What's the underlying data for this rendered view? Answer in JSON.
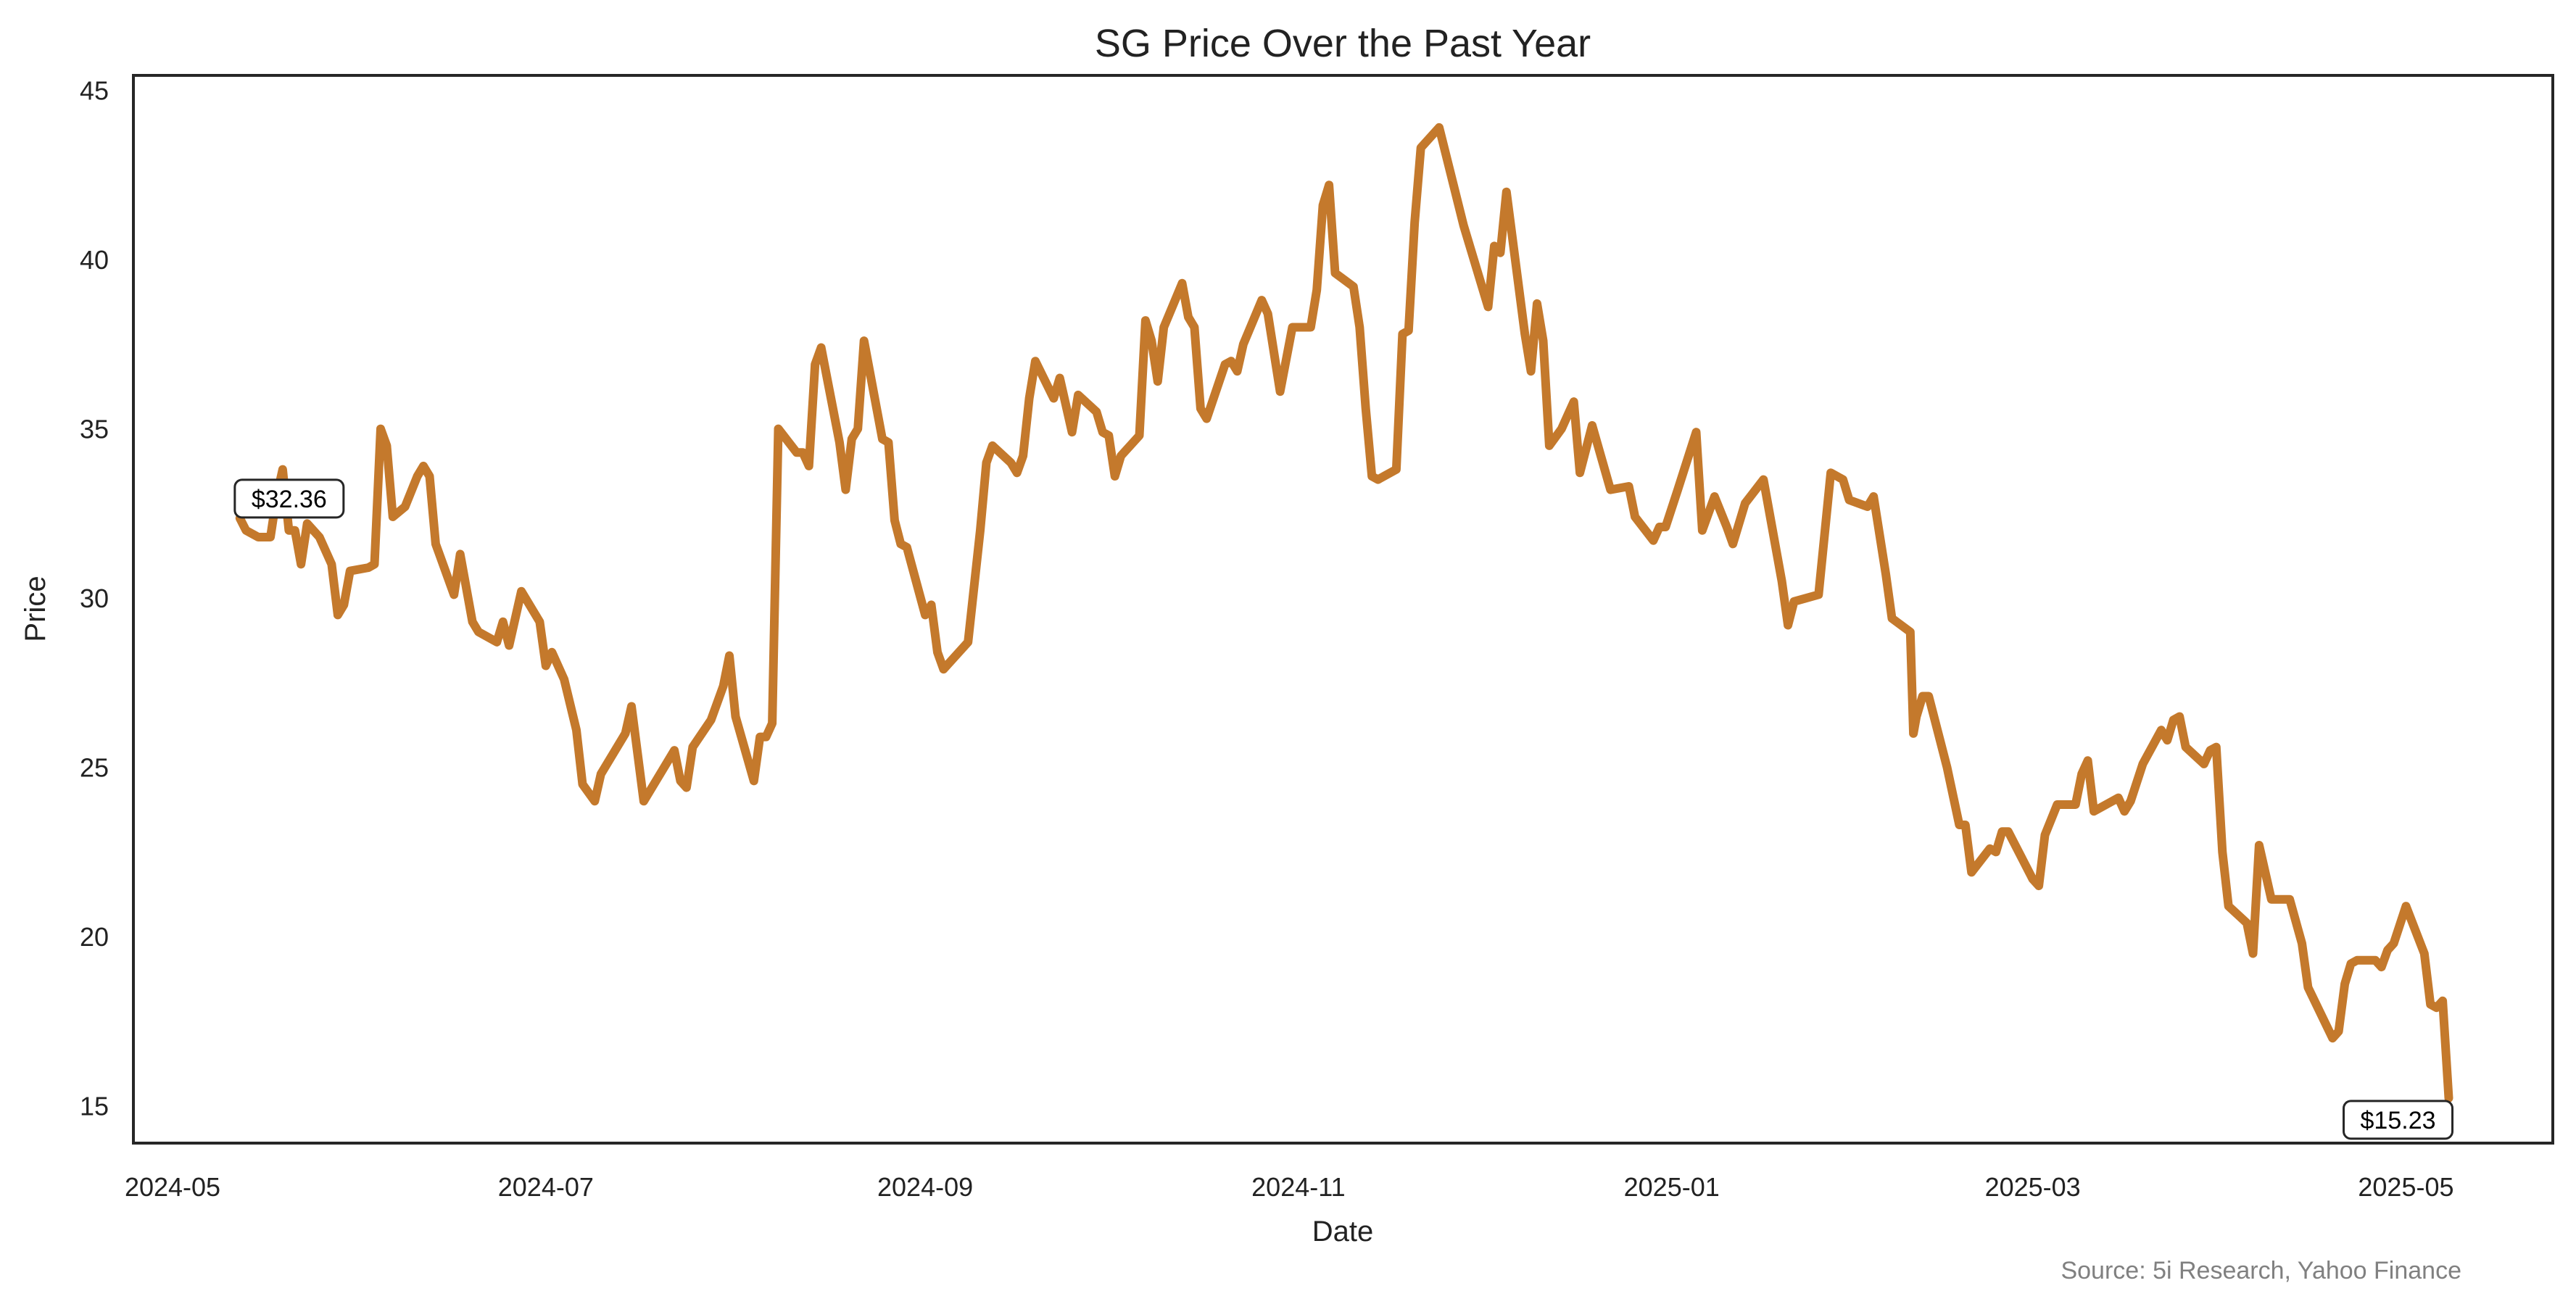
{
  "chart_data": {
    "type": "line",
    "title": "SG Price Over the Past Year",
    "xlabel": "Date",
    "ylabel": "Price",
    "source": "Source: 5i Research, Yahoo Finance",
    "x_unit": "days since 2024-05-01",
    "xlim": [
      -6.4,
      389
    ],
    "ylim": [
      13.9,
      45.44
    ],
    "grid": false,
    "x_ticks": [
      {
        "label": "2024-05",
        "value": 0
      },
      {
        "label": "2024-07",
        "value": 61
      },
      {
        "label": "2024-09",
        "value": 123
      },
      {
        "label": "2024-11",
        "value": 184
      },
      {
        "label": "2025-01",
        "value": 245
      },
      {
        "label": "2025-03",
        "value": 304
      },
      {
        "label": "2025-05",
        "value": 365
      }
    ],
    "y_ticks": [
      15,
      20,
      25,
      30,
      35,
      40,
      45
    ],
    "line_color": "#c4792c",
    "series": [
      {
        "name": "SG",
        "points": [
          [
            11,
            32.36
          ],
          [
            12,
            32.0
          ],
          [
            14,
            31.8
          ],
          [
            16,
            31.8
          ],
          [
            17,
            33.0
          ],
          [
            18,
            33.8
          ],
          [
            19,
            32.0
          ],
          [
            20,
            32.0
          ],
          [
            21,
            31.0
          ],
          [
            22,
            32.2
          ],
          [
            24,
            31.8
          ],
          [
            26,
            31.0
          ],
          [
            27,
            29.5
          ],
          [
            28,
            29.8
          ],
          [
            29,
            30.8
          ],
          [
            32,
            30.9
          ],
          [
            33,
            31.0
          ],
          [
            34,
            35.0
          ],
          [
            35,
            34.5
          ],
          [
            36,
            32.4
          ],
          [
            38,
            32.7
          ],
          [
            40,
            33.6
          ],
          [
            41,
            33.9
          ],
          [
            42,
            33.6
          ],
          [
            43,
            31.6
          ],
          [
            46,
            30.1
          ],
          [
            47,
            31.3
          ],
          [
            49,
            29.3
          ],
          [
            50,
            29.0
          ],
          [
            53,
            28.7
          ],
          [
            54,
            29.3
          ],
          [
            55,
            28.6
          ],
          [
            57,
            30.2
          ],
          [
            60,
            29.3
          ],
          [
            61,
            28.0
          ],
          [
            62,
            28.4
          ],
          [
            64,
            27.6
          ],
          [
            66,
            26.1
          ],
          [
            67,
            24.5
          ],
          [
            69,
            24.0
          ],
          [
            70,
            24.8
          ],
          [
            74,
            26.0
          ],
          [
            75,
            26.8
          ],
          [
            77,
            24.0
          ],
          [
            80,
            24.9
          ],
          [
            82,
            25.5
          ],
          [
            83,
            24.6
          ],
          [
            84,
            24.4
          ],
          [
            85,
            25.6
          ],
          [
            88,
            26.4
          ],
          [
            90,
            27.4
          ],
          [
            91,
            28.3
          ],
          [
            92,
            26.5
          ],
          [
            95,
            24.6
          ],
          [
            96,
            25.9
          ],
          [
            97,
            25.9
          ],
          [
            98,
            26.3
          ],
          [
            99,
            35.0
          ],
          [
            102,
            34.3
          ],
          [
            103,
            34.3
          ],
          [
            104,
            33.9
          ],
          [
            105,
            36.9
          ],
          [
            106,
            37.4
          ],
          [
            109,
            34.6
          ],
          [
            110,
            33.2
          ],
          [
            111,
            34.7
          ],
          [
            112,
            35.0
          ],
          [
            113,
            37.6
          ],
          [
            116,
            34.7
          ],
          [
            117,
            34.6
          ],
          [
            118,
            32.3
          ],
          [
            119,
            31.6
          ],
          [
            120,
            31.5
          ],
          [
            123,
            29.5
          ],
          [
            124,
            29.8
          ],
          [
            125,
            28.4
          ],
          [
            126,
            27.9
          ],
          [
            130,
            28.7
          ],
          [
            132,
            32.0
          ],
          [
            133,
            34.0
          ],
          [
            134,
            34.5
          ],
          [
            137,
            34.0
          ],
          [
            138,
            33.7
          ],
          [
            139,
            34.2
          ],
          [
            140,
            35.9
          ],
          [
            141,
            37.0
          ],
          [
            144,
            35.9
          ],
          [
            145,
            36.5
          ],
          [
            147,
            34.9
          ],
          [
            148,
            36.0
          ],
          [
            151,
            35.5
          ],
          [
            152,
            34.9
          ],
          [
            153,
            34.8
          ],
          [
            154,
            33.6
          ],
          [
            155,
            34.2
          ],
          [
            158,
            34.8
          ],
          [
            159,
            38.2
          ],
          [
            160,
            37.6
          ],
          [
            161,
            36.4
          ],
          [
            162,
            38.0
          ],
          [
            165,
            39.3
          ],
          [
            166,
            38.3
          ],
          [
            167,
            38.0
          ],
          [
            168,
            35.6
          ],
          [
            169,
            35.3
          ],
          [
            172,
            36.9
          ],
          [
            173,
            37.0
          ],
          [
            174,
            36.7
          ],
          [
            175,
            37.5
          ],
          [
            178,
            38.8
          ],
          [
            179,
            38.4
          ],
          [
            181,
            36.1
          ],
          [
            183,
            38.0
          ],
          [
            186,
            38.0
          ],
          [
            187,
            39.1
          ],
          [
            188,
            41.6
          ],
          [
            189,
            42.2
          ],
          [
            190,
            39.6
          ],
          [
            193,
            39.2
          ],
          [
            194,
            38.0
          ],
          [
            195,
            35.6
          ],
          [
            196,
            33.6
          ],
          [
            197,
            33.5
          ],
          [
            200,
            33.8
          ],
          [
            201,
            37.8
          ],
          [
            202,
            37.9
          ],
          [
            203,
            41.1
          ],
          [
            204,
            43.3
          ],
          [
            207,
            43.9
          ],
          [
            211,
            41.0
          ],
          [
            215,
            38.6
          ],
          [
            216,
            40.4
          ],
          [
            217,
            40.2
          ],
          [
            218,
            42.0
          ],
          [
            221,
            37.8
          ],
          [
            222,
            36.7
          ],
          [
            223,
            38.7
          ],
          [
            224,
            37.6
          ],
          [
            225,
            34.5
          ],
          [
            227,
            35.0
          ],
          [
            229,
            35.8
          ],
          [
            230,
            33.7
          ],
          [
            232,
            35.1
          ],
          [
            235,
            33.2
          ],
          [
            238,
            33.3
          ],
          [
            239,
            32.4
          ],
          [
            242,
            31.7
          ],
          [
            243,
            32.1
          ],
          [
            244,
            32.1
          ],
          [
            246,
            33.2
          ],
          [
            249,
            34.9
          ],
          [
            250,
            32.0
          ],
          [
            252,
            33.0
          ],
          [
            254,
            32.1
          ],
          [
            255,
            31.6
          ],
          [
            257,
            32.8
          ],
          [
            260,
            33.5
          ],
          [
            263,
            30.5
          ],
          [
            264,
            29.2
          ],
          [
            265,
            29.9
          ],
          [
            269,
            30.1
          ],
          [
            271,
            33.7
          ],
          [
            273,
            33.5
          ],
          [
            274,
            32.9
          ],
          [
            277,
            32.7
          ],
          [
            278,
            33.0
          ],
          [
            280,
            30.7
          ],
          [
            281,
            29.4
          ],
          [
            284,
            29.0
          ],
          [
            284.5,
            26.0
          ],
          [
            285,
            26.5
          ],
          [
            286,
            27.1
          ],
          [
            287,
            27.1
          ],
          [
            290,
            25.0
          ],
          [
            292,
            23.3
          ],
          [
            293,
            23.3
          ],
          [
            294,
            21.9
          ],
          [
            297,
            22.6
          ],
          [
            298,
            22.5
          ],
          [
            299,
            23.1
          ],
          [
            300,
            23.1
          ],
          [
            304,
            21.7
          ],
          [
            305,
            21.5
          ],
          [
            306,
            23.0
          ],
          [
            308,
            23.9
          ],
          [
            311,
            23.9
          ],
          [
            312,
            24.8
          ],
          [
            313,
            25.2
          ],
          [
            314,
            23.7
          ],
          [
            318,
            24.1
          ],
          [
            319,
            23.7
          ],
          [
            320,
            24.0
          ],
          [
            322,
            25.1
          ],
          [
            325,
            26.1
          ],
          [
            326,
            25.8
          ],
          [
            327,
            26.4
          ],
          [
            328,
            26.5
          ],
          [
            329,
            25.6
          ],
          [
            332,
            25.1
          ],
          [
            333,
            25.5
          ],
          [
            334,
            25.6
          ],
          [
            335,
            22.5
          ],
          [
            336,
            20.9
          ],
          [
            339,
            20.4
          ],
          [
            340,
            19.5
          ],
          [
            341,
            22.7
          ],
          [
            343,
            21.1
          ],
          [
            346,
            21.1
          ],
          [
            348,
            19.8
          ],
          [
            349,
            18.5
          ],
          [
            353,
            17.0
          ],
          [
            354,
            17.2
          ],
          [
            355,
            18.6
          ],
          [
            356,
            19.2
          ],
          [
            357,
            19.3
          ],
          [
            360,
            19.3
          ],
          [
            361,
            19.1
          ],
          [
            362,
            19.6
          ],
          [
            363,
            19.8
          ],
          [
            365,
            20.9
          ],
          [
            368,
            19.5
          ],
          [
            369,
            18.0
          ],
          [
            370,
            17.9
          ],
          [
            371,
            18.1
          ],
          [
            372,
            15.23
          ]
        ]
      }
    ],
    "annotations": [
      {
        "text": "$32.36",
        "x": 11,
        "y": 32.36,
        "position": "start"
      },
      {
        "text": "$15.23",
        "x": 372,
        "y": 15.23,
        "position": "end"
      }
    ]
  }
}
